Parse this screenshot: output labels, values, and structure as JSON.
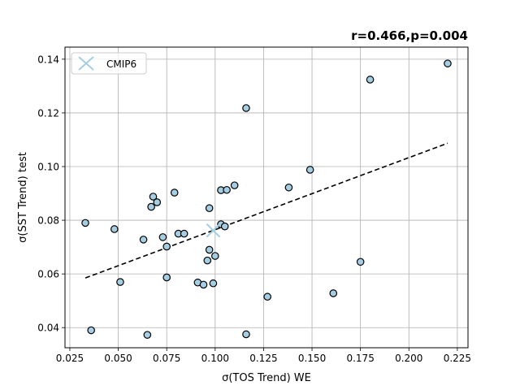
{
  "chart_data": {
    "type": "scatter",
    "title": "r=0.466,p=0.004",
    "xlabel": "σ(TOS Trend) WE",
    "ylabel": "σ(SST Trend) test",
    "xlim": [
      0.0225,
      0.2305
    ],
    "ylim": [
      0.0325,
      0.1445
    ],
    "xticks": [
      0.025,
      0.05,
      0.075,
      0.1,
      0.125,
      0.15,
      0.175,
      0.2,
      0.225
    ],
    "xtick_labels": [
      "0.025",
      "0.050",
      "0.075",
      "0.100",
      "0.125",
      "0.150",
      "0.175",
      "0.200",
      "0.225"
    ],
    "yticks": [
      0.04,
      0.06,
      0.08,
      0.1,
      0.12,
      0.14
    ],
    "ytick_labels": [
      "0.04",
      "0.06",
      "0.08",
      "0.10",
      "0.12",
      "0.14"
    ],
    "grid": true,
    "legend": {
      "placement": "top-left",
      "entries": [
        {
          "label": "CMIP6",
          "marker": "x",
          "color": "#a6cee3"
        }
      ]
    },
    "point_color": "#a6cee3",
    "fit_line": {
      "x": [
        0.033,
        0.22
      ],
      "y": [
        0.0585,
        0.1087
      ],
      "style": "dashed",
      "color": "#000000"
    },
    "ensemble_mean": {
      "x": 0.099,
      "y": 0.0762
    },
    "points": [
      {
        "x": 0.033,
        "y": 0.079
      },
      {
        "x": 0.036,
        "y": 0.039
      },
      {
        "x": 0.048,
        "y": 0.0767
      },
      {
        "x": 0.051,
        "y": 0.057
      },
      {
        "x": 0.063,
        "y": 0.0728
      },
      {
        "x": 0.065,
        "y": 0.0373
      },
      {
        "x": 0.067,
        "y": 0.085
      },
      {
        "x": 0.068,
        "y": 0.0888
      },
      {
        "x": 0.07,
        "y": 0.0867
      },
      {
        "x": 0.073,
        "y": 0.0737
      },
      {
        "x": 0.075,
        "y": 0.0702
      },
      {
        "x": 0.075,
        "y": 0.0587
      },
      {
        "x": 0.079,
        "y": 0.0903
      },
      {
        "x": 0.081,
        "y": 0.075
      },
      {
        "x": 0.084,
        "y": 0.075
      },
      {
        "x": 0.091,
        "y": 0.0568
      },
      {
        "x": 0.094,
        "y": 0.056
      },
      {
        "x": 0.096,
        "y": 0.065
      },
      {
        "x": 0.097,
        "y": 0.0845
      },
      {
        "x": 0.097,
        "y": 0.069
      },
      {
        "x": 0.099,
        "y": 0.0565
      },
      {
        "x": 0.1,
        "y": 0.0667
      },
      {
        "x": 0.103,
        "y": 0.0785
      },
      {
        "x": 0.103,
        "y": 0.0912
      },
      {
        "x": 0.105,
        "y": 0.0777
      },
      {
        "x": 0.106,
        "y": 0.0913
      },
      {
        "x": 0.11,
        "y": 0.093
      },
      {
        "x": 0.116,
        "y": 0.1218
      },
      {
        "x": 0.116,
        "y": 0.0375
      },
      {
        "x": 0.127,
        "y": 0.0515
      },
      {
        "x": 0.138,
        "y": 0.0922
      },
      {
        "x": 0.149,
        "y": 0.0988
      },
      {
        "x": 0.161,
        "y": 0.0528
      },
      {
        "x": 0.175,
        "y": 0.0645
      },
      {
        "x": 0.18,
        "y": 0.1324
      },
      {
        "x": 0.22,
        "y": 0.1384
      }
    ]
  }
}
